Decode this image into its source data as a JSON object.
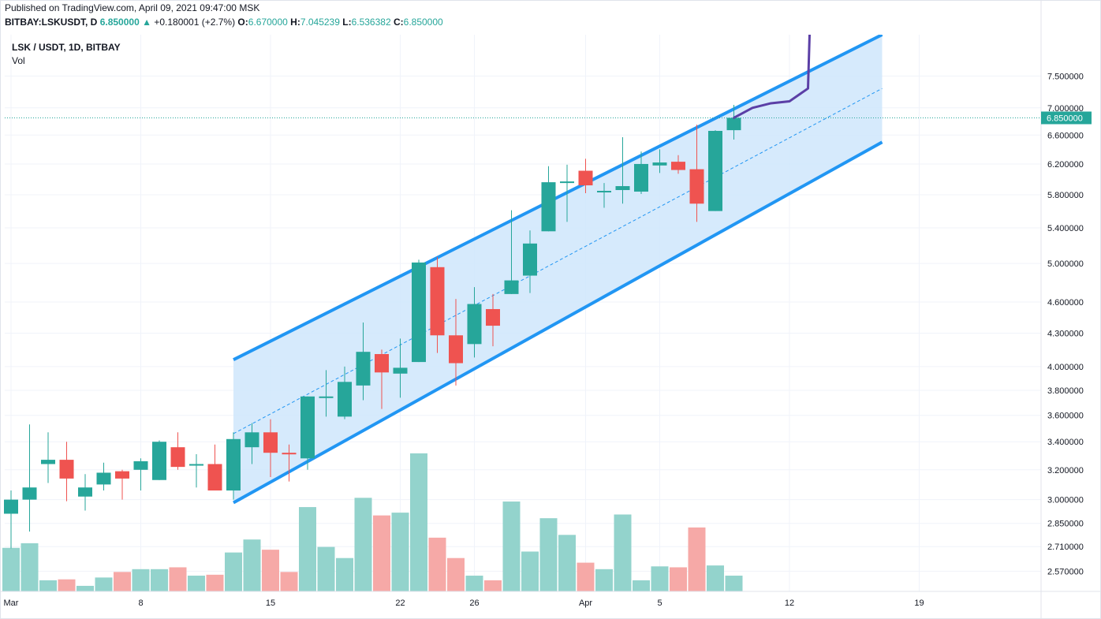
{
  "header": {
    "published": "Published on TradingView.com, April 09, 2021 09:47:00 MSK",
    "symbol": "BITBAY:LSKUSDT, D",
    "price": "6.850000",
    "change_arrow": "▲",
    "change": "+0.180001 (+2.7%)",
    "o_label": "O:",
    "o_value": "6.670000",
    "h_label": "H:",
    "h_value": "7.045239",
    "l_label": "L:",
    "l_value": "6.536382",
    "c_label": "C:",
    "c_value": "6.850000"
  },
  "legend": {
    "title": "LSK / USDT, 1D, BITBAY",
    "volume_label": "Vol"
  },
  "last_price_label": "6.850000",
  "colors": {
    "up": "#26a69a",
    "down": "#ef5350",
    "vol_up": "#93d3cc",
    "vol_down": "#f6a9a7",
    "channel_line": "#2196f3",
    "channel_fill": "#cfe6fb",
    "projection": "#5b3fa6"
  },
  "chart_data": {
    "type": "candlestick",
    "y_scale": "log",
    "ylim": [
      2.46,
      8.2
    ],
    "y_ticks": [
      "7.500000",
      "7.000000",
      "6.600000",
      "6.200000",
      "5.800000",
      "5.400000",
      "5.000000",
      "4.600000",
      "4.300000",
      "4.000000",
      "3.800000",
      "3.600000",
      "3.400000",
      "3.200000",
      "3.000000",
      "2.850000",
      "2.710000",
      "2.570000"
    ],
    "x_ticks": [
      "Mar",
      "8",
      "15",
      "22",
      "26",
      "Apr",
      "5",
      "12",
      "19"
    ],
    "candles": [
      {
        "date": "Mar 1",
        "open": 2.91,
        "high": 3.06,
        "low": 2.7,
        "close": 3.0,
        "volume": 47
      },
      {
        "date": "Mar 2",
        "open": 3.0,
        "high": 3.53,
        "low": 2.8,
        "close": 3.08,
        "volume": 52
      },
      {
        "date": "Mar 3",
        "open": 3.24,
        "high": 3.47,
        "low": 3.11,
        "close": 3.27,
        "volume": 12
      },
      {
        "date": "Mar 4",
        "open": 3.27,
        "high": 3.4,
        "low": 2.99,
        "close": 3.14,
        "volume": 13
      },
      {
        "date": "Mar 5",
        "open": 3.02,
        "high": 3.17,
        "low": 2.93,
        "close": 3.08,
        "volume": 6
      },
      {
        "date": "Mar 6",
        "open": 3.1,
        "high": 3.25,
        "low": 3.06,
        "close": 3.18,
        "volume": 15
      },
      {
        "date": "Mar 7",
        "open": 3.19,
        "high": 3.2,
        "low": 3.0,
        "close": 3.14,
        "volume": 21
      },
      {
        "date": "Mar 8",
        "open": 3.2,
        "high": 3.28,
        "low": 3.06,
        "close": 3.26,
        "volume": 24
      },
      {
        "date": "Mar 9",
        "open": 3.13,
        "high": 3.41,
        "low": 3.13,
        "close": 3.4,
        "volume": 24
      },
      {
        "date": "Mar 10",
        "open": 3.36,
        "high": 3.47,
        "low": 3.2,
        "close": 3.22,
        "volume": 26
      },
      {
        "date": "Mar 11",
        "open": 3.23,
        "high": 3.31,
        "low": 3.08,
        "close": 3.24,
        "volume": 17
      },
      {
        "date": "Mar 12",
        "open": 3.24,
        "high": 3.38,
        "low": 3.06,
        "close": 3.06,
        "volume": 18
      },
      {
        "date": "Mar 13",
        "open": 3.06,
        "high": 3.47,
        "low": 3.0,
        "close": 3.42,
        "volume": 42
      },
      {
        "date": "Mar 14",
        "open": 3.36,
        "high": 3.54,
        "low": 3.24,
        "close": 3.47,
        "volume": 56
      },
      {
        "date": "Mar 15",
        "open": 3.47,
        "high": 3.57,
        "low": 3.15,
        "close": 3.32,
        "volume": 45
      },
      {
        "date": "Mar 16",
        "open": 3.32,
        "high": 3.38,
        "low": 3.12,
        "close": 3.31,
        "volume": 21
      },
      {
        "date": "Mar 17",
        "open": 3.28,
        "high": 3.75,
        "low": 3.2,
        "close": 3.75,
        "volume": 91
      },
      {
        "date": "Mar 18",
        "open": 3.75,
        "high": 3.97,
        "low": 3.59,
        "close": 3.75,
        "volume": 48
      },
      {
        "date": "Mar 19",
        "open": 3.59,
        "high": 4.0,
        "low": 3.57,
        "close": 3.87,
        "volume": 36
      },
      {
        "date": "Mar 20",
        "open": 3.84,
        "high": 4.4,
        "low": 3.72,
        "close": 4.13,
        "volume": 101
      },
      {
        "date": "Mar 21",
        "open": 4.11,
        "high": 4.15,
        "low": 3.65,
        "close": 3.95,
        "volume": 82
      },
      {
        "date": "Mar 22",
        "open": 3.94,
        "high": 4.25,
        "low": 3.74,
        "close": 3.99,
        "volume": 85
      },
      {
        "date": "Mar 23",
        "open": 4.04,
        "high": 5.04,
        "low": 4.04,
        "close": 5.01,
        "volume": 149
      },
      {
        "date": "Mar 24",
        "open": 4.96,
        "high": 5.07,
        "low": 4.12,
        "close": 4.28,
        "volume": 58
      },
      {
        "date": "Mar 25",
        "open": 4.28,
        "high": 4.63,
        "low": 3.84,
        "close": 4.03,
        "volume": 36
      },
      {
        "date": "Mar 26",
        "open": 4.2,
        "high": 4.75,
        "low": 4.08,
        "close": 4.58,
        "volume": 17
      },
      {
        "date": "Mar 27",
        "open": 4.53,
        "high": 4.68,
        "low": 4.18,
        "close": 4.37,
        "volume": 12
      },
      {
        "date": "Mar 28",
        "open": 4.68,
        "high": 5.61,
        "low": 4.68,
        "close": 4.82,
        "volume": 97
      },
      {
        "date": "Mar 29",
        "open": 4.87,
        "high": 5.37,
        "low": 4.69,
        "close": 5.22,
        "volume": 43
      },
      {
        "date": "Mar 30",
        "open": 5.36,
        "high": 6.17,
        "low": 5.36,
        "close": 5.96,
        "volume": 79
      },
      {
        "date": "Mar 31",
        "open": 5.96,
        "high": 6.19,
        "low": 5.47,
        "close": 5.97,
        "volume": 61
      },
      {
        "date": "Apr 1",
        "open": 6.11,
        "high": 6.27,
        "low": 5.82,
        "close": 5.92,
        "volume": 31
      },
      {
        "date": "Apr 2",
        "open": 5.85,
        "high": 5.95,
        "low": 5.64,
        "close": 5.85,
        "volume": 24
      },
      {
        "date": "Apr 3",
        "open": 5.86,
        "high": 6.57,
        "low": 5.69,
        "close": 5.91,
        "volume": 83
      },
      {
        "date": "Apr 4",
        "open": 5.84,
        "high": 6.37,
        "low": 5.81,
        "close": 6.2,
        "volume": 12
      },
      {
        "date": "Apr 5",
        "open": 6.18,
        "high": 6.4,
        "low": 6.08,
        "close": 6.22,
        "volume": 27
      },
      {
        "date": "Apr 6",
        "open": 6.23,
        "high": 6.32,
        "low": 6.07,
        "close": 6.12,
        "volume": 26
      },
      {
        "date": "Apr 7",
        "open": 6.13,
        "high": 6.75,
        "low": 5.47,
        "close": 5.69,
        "volume": 69
      },
      {
        "date": "Apr 8",
        "open": 5.6,
        "high": 6.67,
        "low": 5.6,
        "close": 6.66,
        "volume": 28
      },
      {
        "date": "Apr 9",
        "open": 6.67,
        "high": 7.045239,
        "low": 6.536382,
        "close": 6.85,
        "volume": 17
      }
    ],
    "channel": {
      "start_date": "Mar 13",
      "end_date": "Apr 17",
      "upper": [
        4.06,
        8.2
      ],
      "lower": [
        2.98,
        6.5
      ],
      "middle": [
        3.46,
        7.3
      ]
    },
    "projection": [
      {
        "date": "Apr 9",
        "value": 6.85
      },
      {
        "date": "Apr 10",
        "value": 7.0
      },
      {
        "date": "Apr 11",
        "value": 7.07
      },
      {
        "date": "Apr 12",
        "value": 7.1
      },
      {
        "date": "Apr 13",
        "value": 7.3
      },
      {
        "date": "Apr 13",
        "value": 8.2
      }
    ]
  }
}
